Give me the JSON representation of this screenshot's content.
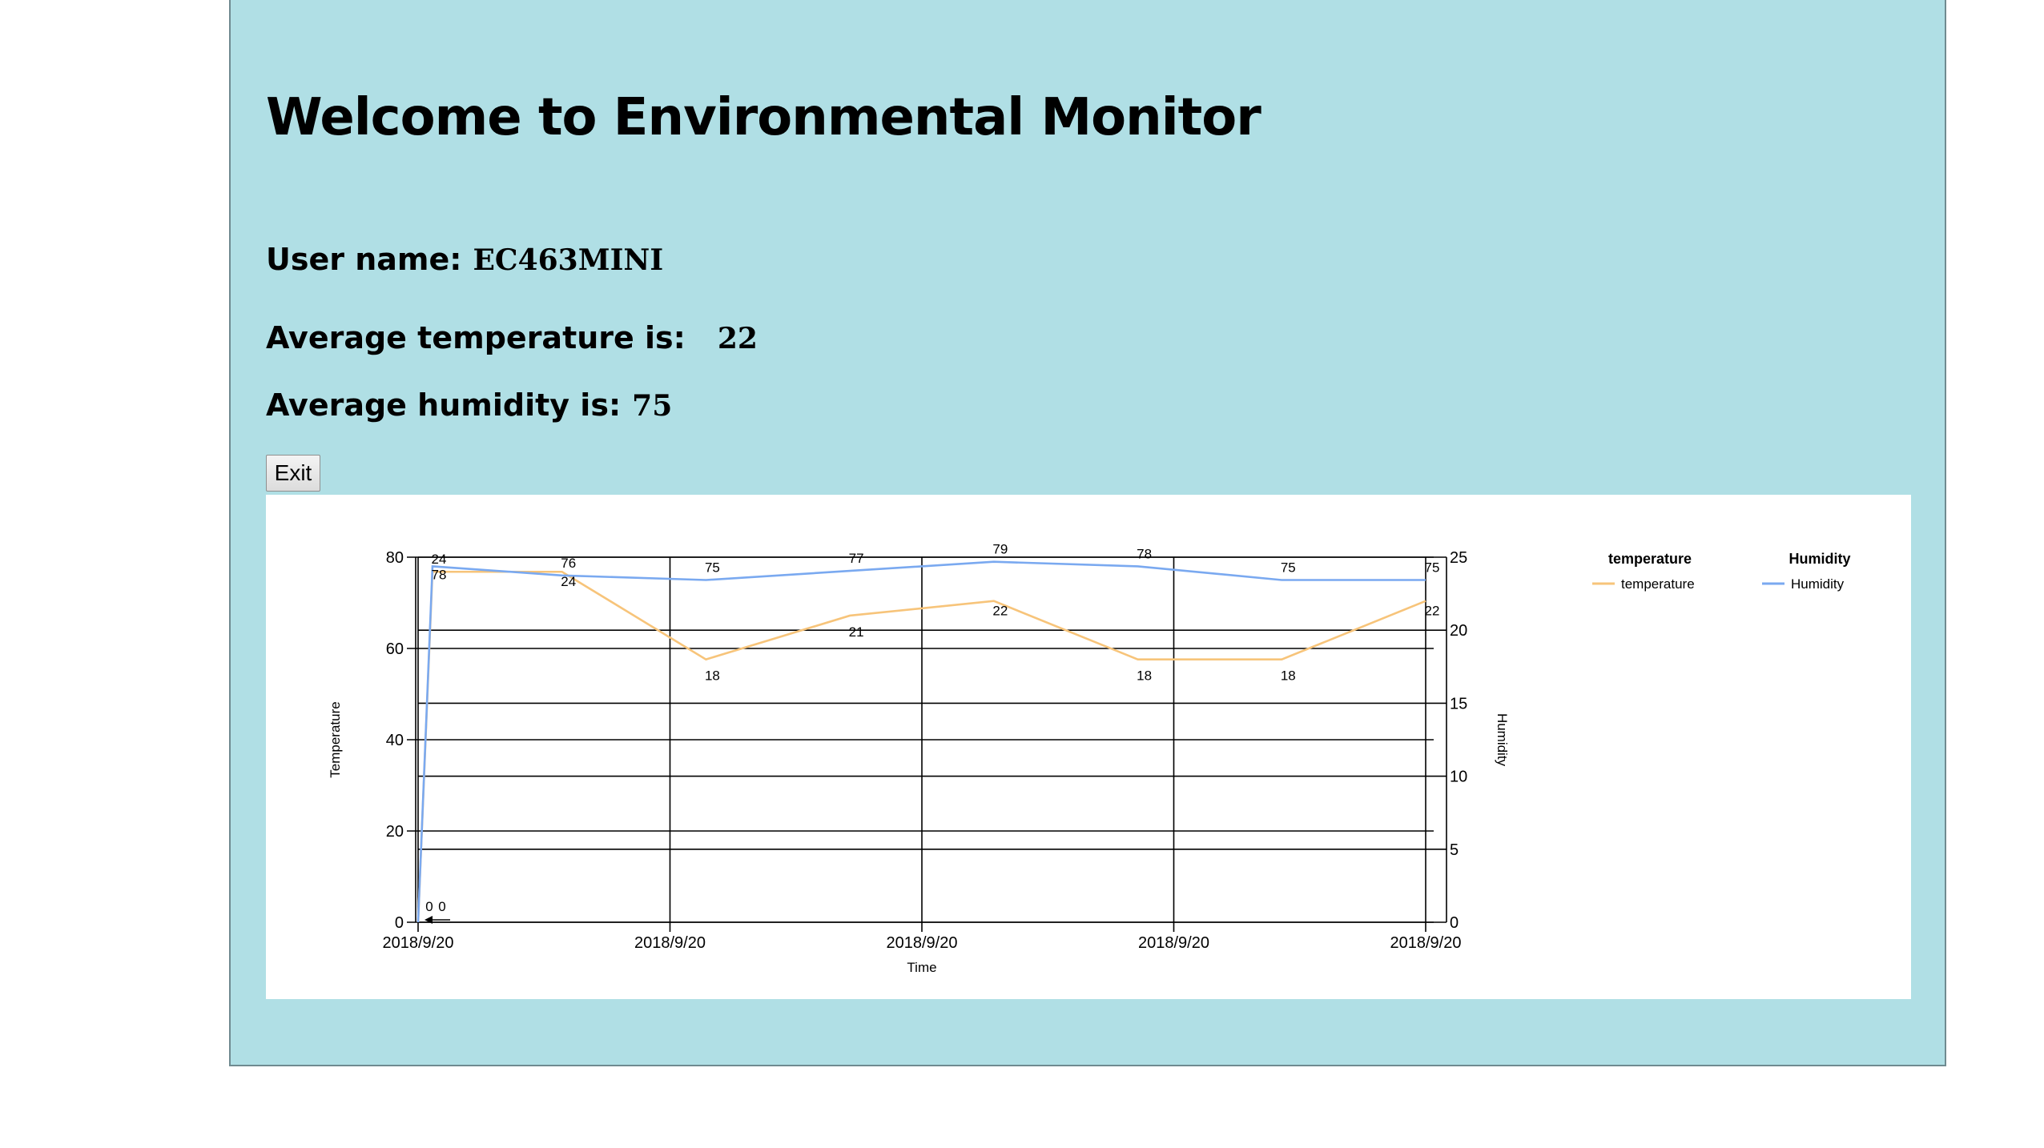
{
  "title": "Welcome to Environmental Monitor",
  "user": {
    "label": "User name:",
    "value": "EC463MINI"
  },
  "avg_temp": {
    "label": "Average temperature is:",
    "value": "22"
  },
  "avg_hum": {
    "label": "Average humidity is:",
    "value": "75"
  },
  "exit_label": "Exit",
  "colors": {
    "panel": "#b0dfe5",
    "temperature": "#f7c47a",
    "humidity": "#7aa9f0"
  },
  "chart_data": {
    "type": "line",
    "xlabel": "Time",
    "ylabel_left": "Temperature",
    "ylabel_right": "Humidity",
    "x_tick_labels": [
      "2018/9/20",
      "2018/9/20",
      "2018/9/20",
      "2018/9/20",
      "2018/9/20"
    ],
    "x": [
      0,
      0.1,
      1,
      2,
      3,
      4,
      5,
      6,
      7
    ],
    "y_left_range": [
      0,
      80
    ],
    "y_left_ticks": [
      0,
      20,
      40,
      60,
      80
    ],
    "y_right_range": [
      0,
      25
    ],
    "y_right_ticks": [
      0,
      5,
      10,
      15,
      20,
      25
    ],
    "grid": true,
    "legend_position": "top-right",
    "legend_titles": [
      "temperature",
      "Humidity"
    ],
    "series": [
      {
        "name": "temperature",
        "axis": "right",
        "values": [
          0,
          24,
          24,
          18,
          21,
          22,
          18,
          18,
          22
        ],
        "labels": [
          "0",
          "24",
          "24",
          "18",
          "21",
          "22",
          "18",
          "18",
          "22"
        ]
      },
      {
        "name": "Humidity",
        "axis": "left",
        "values": [
          0,
          78,
          76,
          75,
          77,
          79,
          78,
          75,
          75
        ],
        "labels": [
          "0",
          "78",
          "76",
          "75",
          "77",
          "79",
          "78",
          "75",
          "75"
        ]
      }
    ]
  }
}
